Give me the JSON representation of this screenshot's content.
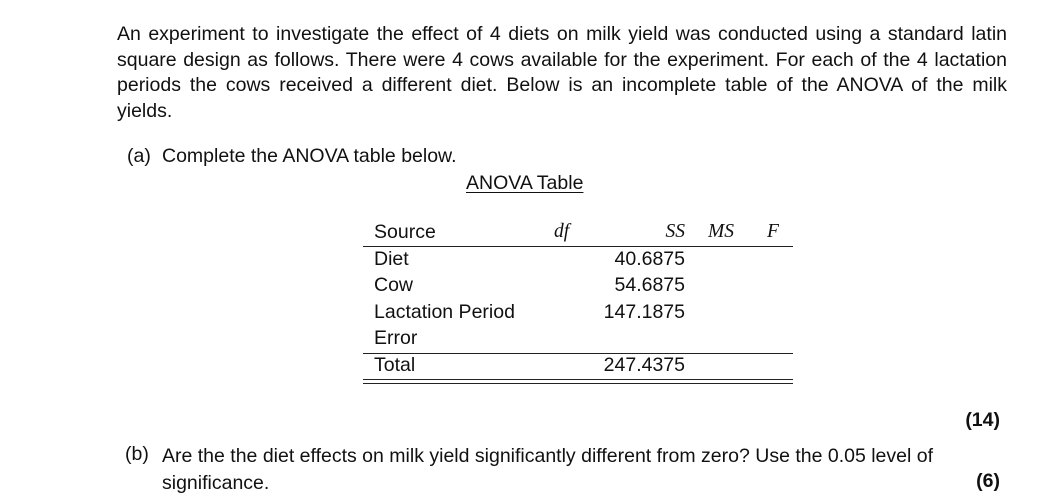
{
  "intro": "An experiment to investigate the effect of 4 diets on milk yield was conducted using a standard latin square design as follows. There were 4 cows available for the experiment. For each of the 4 lactation periods the cows received a different diet. Below is an incomplete table of the ANOVA of the milk yields.",
  "part_a": {
    "label": "(a)",
    "text": "Complete the ANOVA table below.",
    "marks": "(14)"
  },
  "table": {
    "caption": "ANOVA Table",
    "headers": {
      "source": "Source",
      "df": "df",
      "ss": "SS",
      "ms": "MS",
      "f": "F"
    },
    "rows": [
      {
        "source": "Diet",
        "ss": "40.6875"
      },
      {
        "source": "Cow",
        "ss": "54.6875"
      },
      {
        "source": "Lactation Period",
        "ss": "147.1875"
      },
      {
        "source": "Error",
        "ss": ""
      },
      {
        "source": "Total",
        "ss": "247.4375"
      }
    ]
  },
  "part_b": {
    "label": "(b)",
    "text": "Are the the diet effects on milk yield significantly different from zero? Use the 0.05 level of significance.",
    "marks": "(6)"
  }
}
